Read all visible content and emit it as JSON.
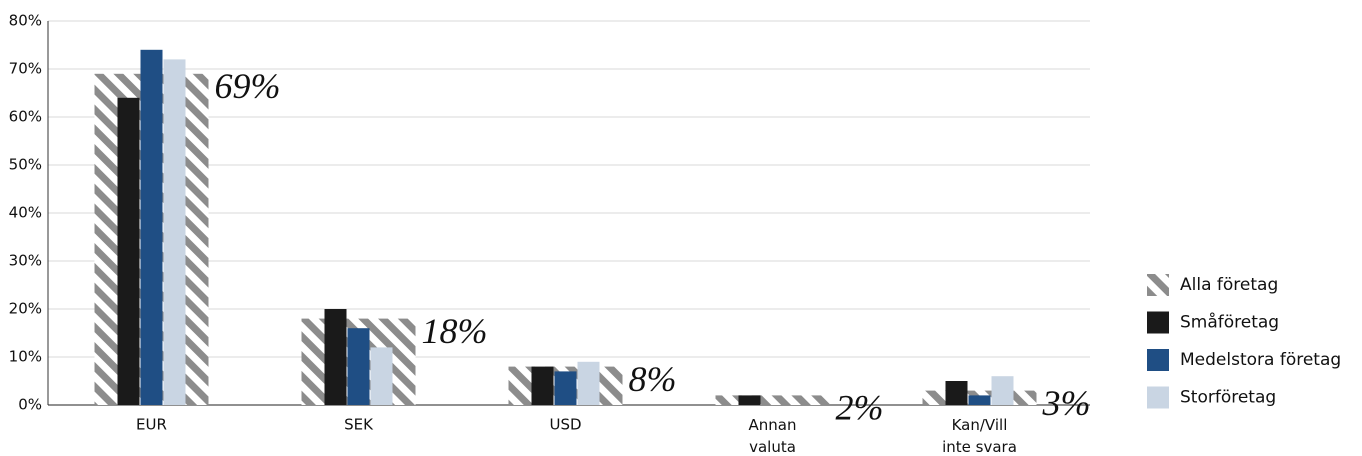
{
  "chart_data": {
    "type": "bar",
    "categories": [
      "EUR",
      "SEK",
      "USD",
      "Annan\nvaluta",
      "Kan/Vill\ninte svara"
    ],
    "series": [
      {
        "name": "Alla företag",
        "color": "#8c8c8c",
        "hatched": true,
        "values": [
          69,
          18,
          8,
          2,
          3
        ],
        "value_labels": [
          "69%",
          "18%",
          "8%",
          "2%",
          "3%"
        ]
      },
      {
        "name": "Småföretag",
        "color": "#1a1a1a",
        "values": [
          64,
          20,
          8,
          2,
          5
        ]
      },
      {
        "name": "Medelstora företag",
        "color": "#1f4e84",
        "values": [
          74,
          16,
          7,
          0,
          2
        ]
      },
      {
        "name": "Storföretag",
        "color": "#c9d5e3",
        "values": [
          72,
          12,
          9,
          0,
          6
        ]
      }
    ],
    "ylim": [
      0,
      80
    ],
    "yticks": [
      {
        "value": 0,
        "label": "0%"
      },
      {
        "value": 10,
        "label": "10%"
      },
      {
        "value": 20,
        "label": "20%"
      },
      {
        "value": 30,
        "label": "30%"
      },
      {
        "value": 40,
        "label": "40%"
      },
      {
        "value": 50,
        "label": "50%"
      },
      {
        "value": 60,
        "label": "60%"
      },
      {
        "value": 70,
        "label": "70%"
      },
      {
        "value": 80,
        "label": "80%"
      }
    ],
    "grid": true,
    "legend": "right"
  }
}
